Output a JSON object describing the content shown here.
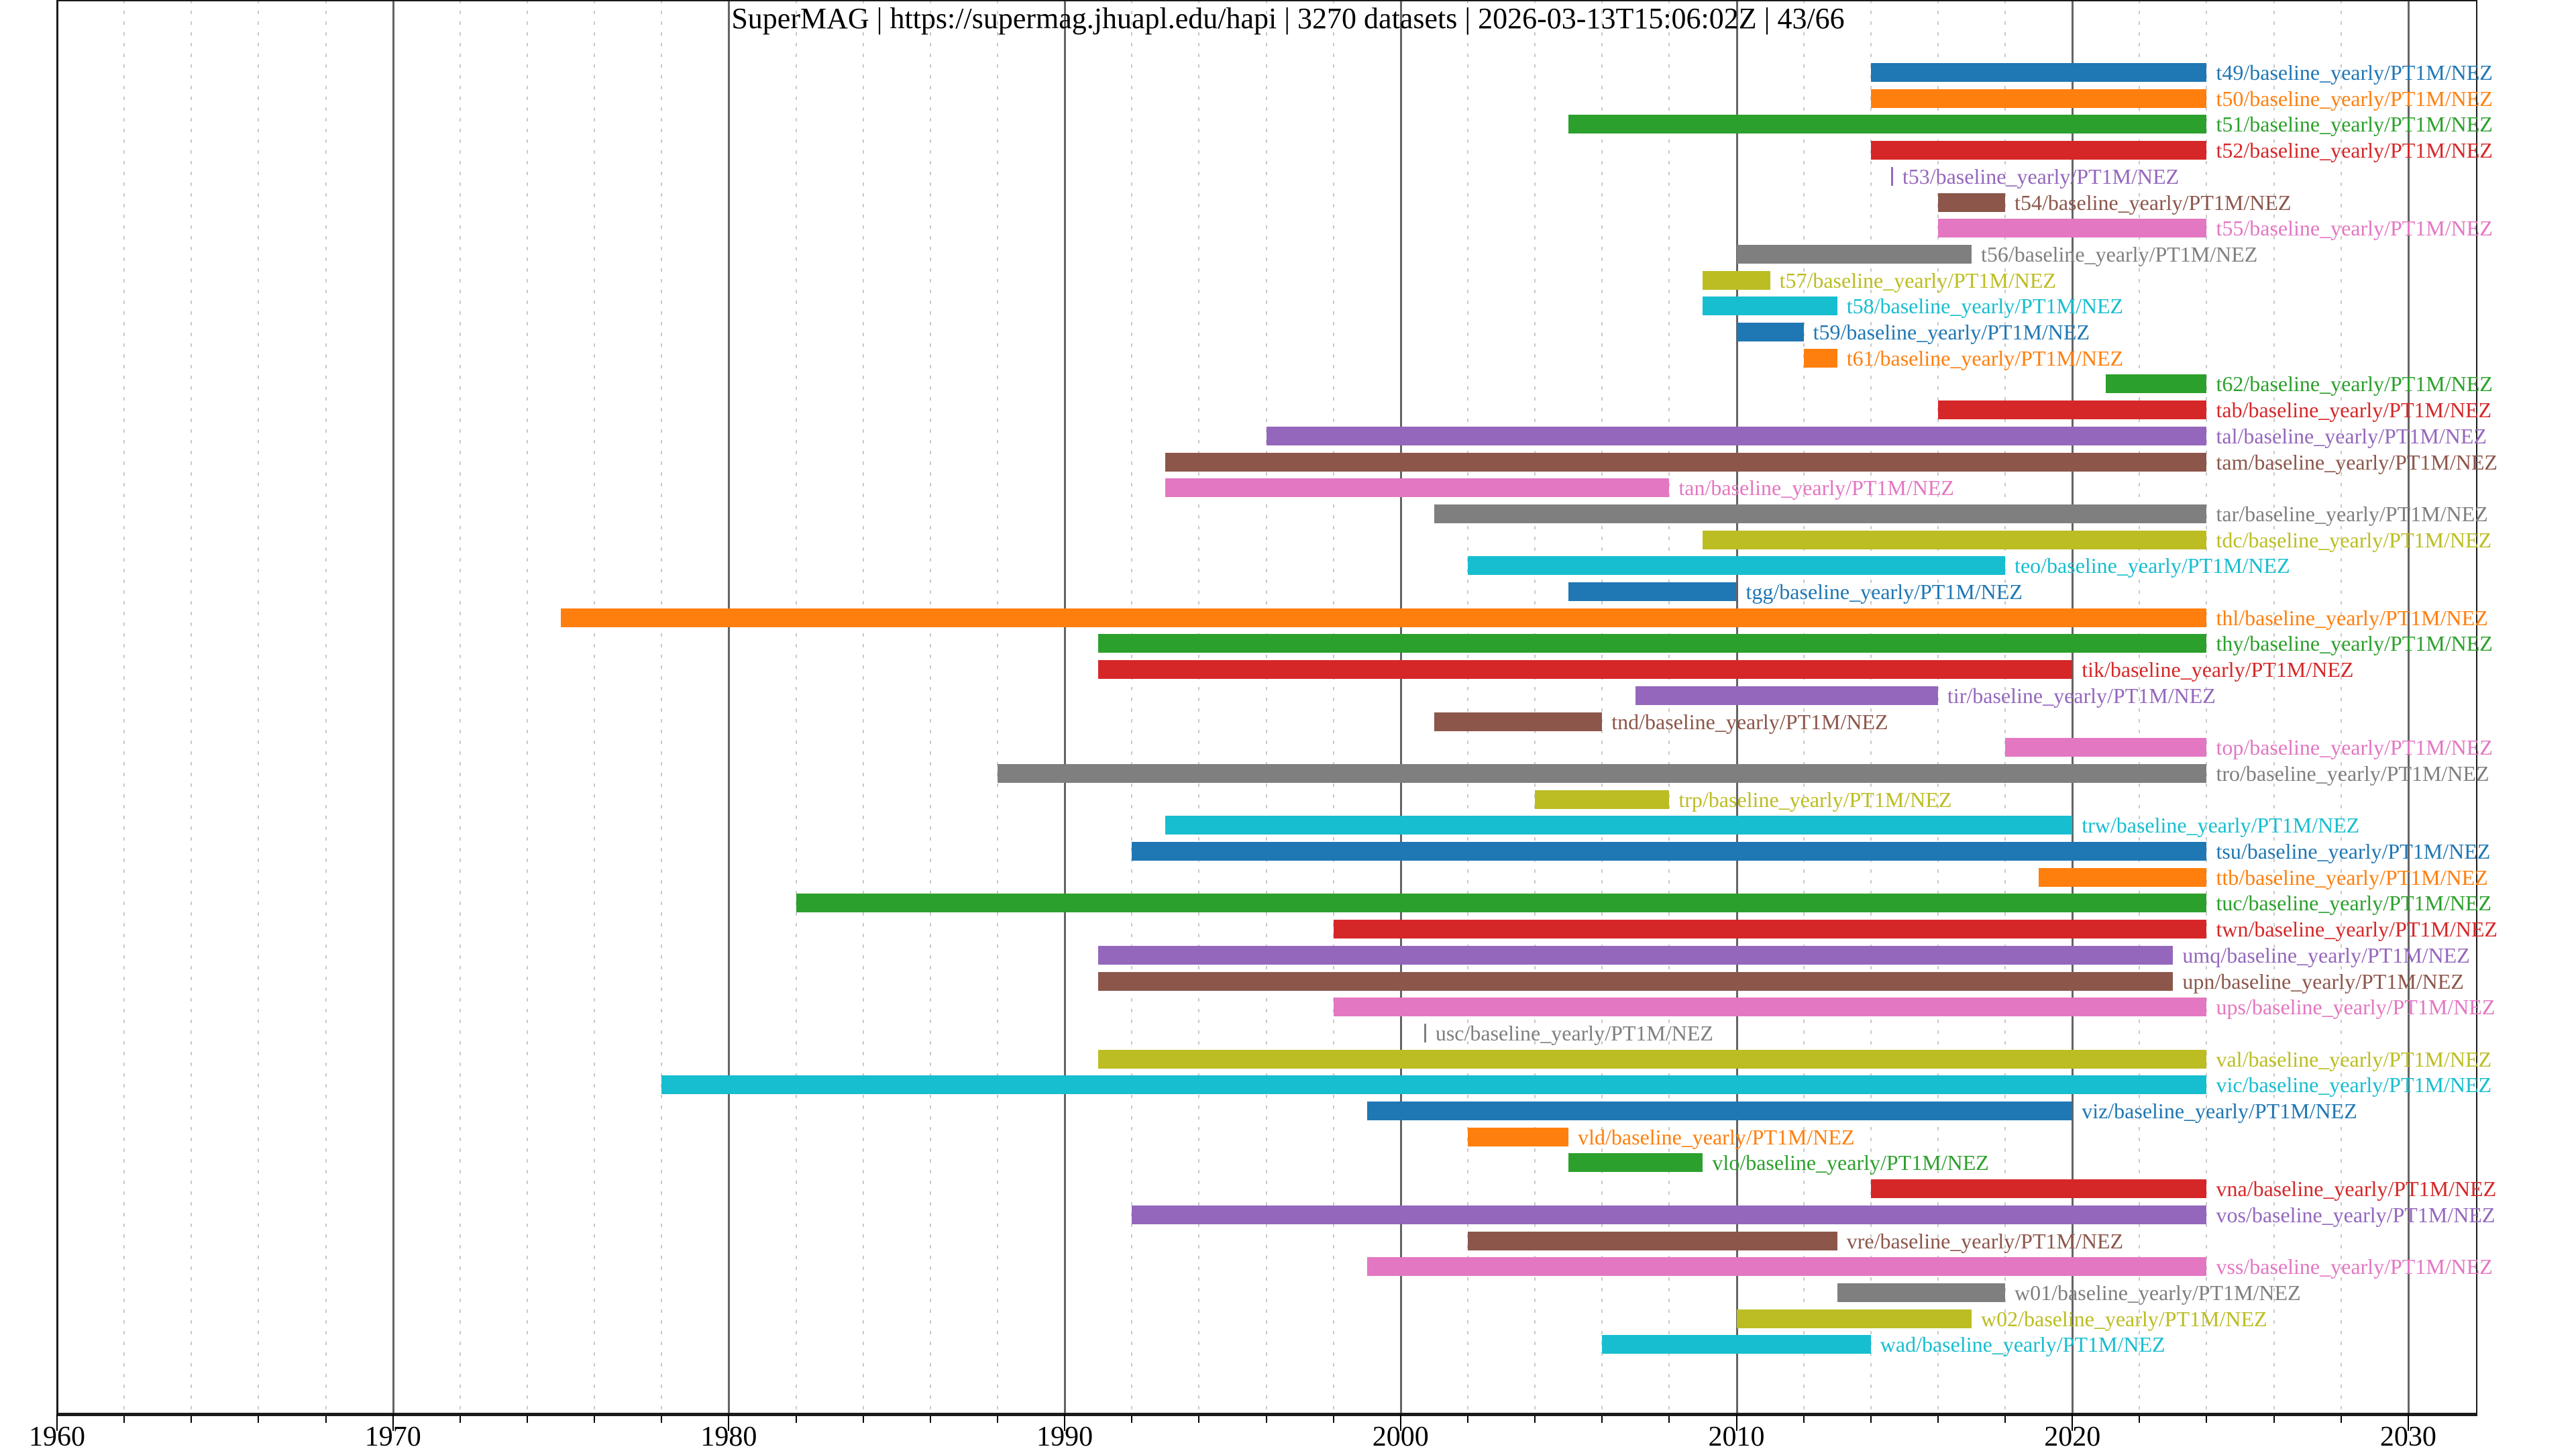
{
  "header": {
    "title": "SuperMAG | https://supermag.jhuapl.edu/hapi | 3270 datasets | 2026-03-13T15:06:02Z | 43/66"
  },
  "chart_data": {
    "type": "gantt",
    "title": "SuperMAG | https://supermag.jhuapl.edu/hapi | 3270 datasets | 2026-03-13T15:06:02Z | 43/66",
    "xlabel": "",
    "ylabel": "",
    "xlim": [
      1959.9,
      2032.1
    ],
    "x_major_ticks": [
      1960,
      1970,
      1980,
      1990,
      2000,
      2010,
      2020,
      2030
    ],
    "x_major_tick_labels": [
      "1960",
      "1970",
      "1980",
      "1990",
      "2000",
      "2010",
      "2020",
      "2030"
    ],
    "x_minor_tick_step_years": 2,
    "grid": "major solid gray vertical, minor dotted light-gray vertical",
    "legend_position": "none",
    "palette_tab10": [
      "#1f77b4",
      "#ff7f0e",
      "#2ca02c",
      "#d62728",
      "#9467bd",
      "#8c564b",
      "#e377c2",
      "#7f7f7f",
      "#bcbd22",
      "#17becf"
    ],
    "rows": [
      {
        "id": "t49",
        "label": "t49/baseline_yearly/PT1M/NEZ",
        "start": 2014.0,
        "end": 2024.0,
        "color": "#1f77b4"
      },
      {
        "id": "t50",
        "label": "t50/baseline_yearly/PT1M/NEZ",
        "start": 2014.0,
        "end": 2024.0,
        "color": "#ff7f0e"
      },
      {
        "id": "t51",
        "label": "t51/baseline_yearly/PT1M/NEZ",
        "start": 2005.0,
        "end": 2024.0,
        "color": "#2ca02c"
      },
      {
        "id": "t52",
        "label": "t52/baseline_yearly/PT1M/NEZ",
        "start": 2014.0,
        "end": 2024.0,
        "color": "#d62728"
      },
      {
        "id": "t53",
        "label": "t53/baseline_yearly/PT1M/NEZ",
        "start": 2014.6,
        "end": 2014.65,
        "color": "#9467bd"
      },
      {
        "id": "t54",
        "label": "t54/baseline_yearly/PT1M/NEZ",
        "start": 2016.0,
        "end": 2018.0,
        "color": "#8c564b"
      },
      {
        "id": "t55",
        "label": "t55/baseline_yearly/PT1M/NEZ",
        "start": 2016.0,
        "end": 2024.0,
        "color": "#e377c2"
      },
      {
        "id": "t56",
        "label": "t56/baseline_yearly/PT1M/NEZ",
        "start": 2010.0,
        "end": 2017.0,
        "color": "#7f7f7f"
      },
      {
        "id": "t57",
        "label": "t57/baseline_yearly/PT1M/NEZ",
        "start": 2009.0,
        "end": 2011.0,
        "color": "#bcbd22"
      },
      {
        "id": "t58",
        "label": "t58/baseline_yearly/PT1M/NEZ",
        "start": 2009.0,
        "end": 2013.0,
        "color": "#17becf"
      },
      {
        "id": "t59",
        "label": "t59/baseline_yearly/PT1M/NEZ",
        "start": 2010.0,
        "end": 2012.0,
        "color": "#1f77b4"
      },
      {
        "id": "t61",
        "label": "t61/baseline_yearly/PT1M/NEZ",
        "start": 2012.0,
        "end": 2013.0,
        "color": "#ff7f0e"
      },
      {
        "id": "t62",
        "label": "t62/baseline_yearly/PT1M/NEZ",
        "start": 2021.0,
        "end": 2024.0,
        "color": "#2ca02c"
      },
      {
        "id": "tab",
        "label": "tab/baseline_yearly/PT1M/NEZ",
        "start": 2016.0,
        "end": 2024.0,
        "color": "#d62728"
      },
      {
        "id": "tal",
        "label": "tal/baseline_yearly/PT1M/NEZ",
        "start": 1996.0,
        "end": 2024.0,
        "color": "#9467bd"
      },
      {
        "id": "tam",
        "label": "tam/baseline_yearly/PT1M/NEZ",
        "start": 1993.0,
        "end": 2024.0,
        "color": "#8c564b"
      },
      {
        "id": "tan",
        "label": "tan/baseline_yearly/PT1M/NEZ",
        "start": 1993.0,
        "end": 2008.0,
        "color": "#e377c2"
      },
      {
        "id": "tar",
        "label": "tar/baseline_yearly/PT1M/NEZ",
        "start": 2001.0,
        "end": 2024.0,
        "color": "#7f7f7f"
      },
      {
        "id": "tdc",
        "label": "tdc/baseline_yearly/PT1M/NEZ",
        "start": 2009.0,
        "end": 2024.0,
        "color": "#bcbd22"
      },
      {
        "id": "teo",
        "label": "teo/baseline_yearly/PT1M/NEZ",
        "start": 2002.0,
        "end": 2018.0,
        "color": "#17becf"
      },
      {
        "id": "tgg",
        "label": "tgg/baseline_yearly/PT1M/NEZ",
        "start": 2005.0,
        "end": 2010.0,
        "color": "#1f77b4"
      },
      {
        "id": "thl",
        "label": "thl/baseline_yearly/PT1M/NEZ",
        "start": 1975.0,
        "end": 2024.0,
        "color": "#ff7f0e"
      },
      {
        "id": "thy",
        "label": "thy/baseline_yearly/PT1M/NEZ",
        "start": 1991.0,
        "end": 2024.0,
        "color": "#2ca02c"
      },
      {
        "id": "tik",
        "label": "tik/baseline_yearly/PT1M/NEZ",
        "start": 1991.0,
        "end": 2020.0,
        "color": "#d62728"
      },
      {
        "id": "tir",
        "label": "tir/baseline_yearly/PT1M/NEZ",
        "start": 2007.0,
        "end": 2016.0,
        "color": "#9467bd"
      },
      {
        "id": "tnd",
        "label": "tnd/baseline_yearly/PT1M/NEZ",
        "start": 2001.0,
        "end": 2006.0,
        "color": "#8c564b"
      },
      {
        "id": "top",
        "label": "top/baseline_yearly/PT1M/NEZ",
        "start": 2018.0,
        "end": 2024.0,
        "color": "#e377c2"
      },
      {
        "id": "tro",
        "label": "tro/baseline_yearly/PT1M/NEZ",
        "start": 1988.0,
        "end": 2024.0,
        "color": "#7f7f7f"
      },
      {
        "id": "trp",
        "label": "trp/baseline_yearly/PT1M/NEZ",
        "start": 2004.0,
        "end": 2008.0,
        "color": "#bcbd22"
      },
      {
        "id": "trw",
        "label": "trw/baseline_yearly/PT1M/NEZ",
        "start": 1993.0,
        "end": 2020.0,
        "color": "#17becf"
      },
      {
        "id": "tsu",
        "label": "tsu/baseline_yearly/PT1M/NEZ",
        "start": 1992.0,
        "end": 2024.0,
        "color": "#1f77b4"
      },
      {
        "id": "ttb",
        "label": "ttb/baseline_yearly/PT1M/NEZ",
        "start": 2019.0,
        "end": 2024.0,
        "color": "#ff7f0e"
      },
      {
        "id": "tuc",
        "label": "tuc/baseline_yearly/PT1M/NEZ",
        "start": 1982.0,
        "end": 2024.0,
        "color": "#2ca02c"
      },
      {
        "id": "twn",
        "label": "twn/baseline_yearly/PT1M/NEZ",
        "start": 1998.0,
        "end": 2024.0,
        "color": "#d62728"
      },
      {
        "id": "umq",
        "label": "umq/baseline_yearly/PT1M/NEZ",
        "start": 1991.0,
        "end": 2023.0,
        "color": "#9467bd"
      },
      {
        "id": "upn",
        "label": "upn/baseline_yearly/PT1M/NEZ",
        "start": 1991.0,
        "end": 2023.0,
        "color": "#8c564b"
      },
      {
        "id": "ups",
        "label": "ups/baseline_yearly/PT1M/NEZ",
        "start": 1998.0,
        "end": 2024.0,
        "color": "#e377c2"
      },
      {
        "id": "usc",
        "label": "usc/baseline_yearly/PT1M/NEZ",
        "start": 2000.7,
        "end": 2000.75,
        "color": "#7f7f7f"
      },
      {
        "id": "val",
        "label": "val/baseline_yearly/PT1M/NEZ",
        "start": 1991.0,
        "end": 2024.0,
        "color": "#bcbd22"
      },
      {
        "id": "vic",
        "label": "vic/baseline_yearly/PT1M/NEZ",
        "start": 1978.0,
        "end": 2024.0,
        "color": "#17becf"
      },
      {
        "id": "viz",
        "label": "viz/baseline_yearly/PT1M/NEZ",
        "start": 1999.0,
        "end": 2020.0,
        "color": "#1f77b4"
      },
      {
        "id": "vld",
        "label": "vld/baseline_yearly/PT1M/NEZ",
        "start": 2002.0,
        "end": 2005.0,
        "color": "#ff7f0e"
      },
      {
        "id": "vlo",
        "label": "vlo/baseline_yearly/PT1M/NEZ",
        "start": 2005.0,
        "end": 2009.0,
        "color": "#2ca02c"
      },
      {
        "id": "vna",
        "label": "vna/baseline_yearly/PT1M/NEZ",
        "start": 2014.0,
        "end": 2024.0,
        "color": "#d62728"
      },
      {
        "id": "vos",
        "label": "vos/baseline_yearly/PT1M/NEZ",
        "start": 1992.0,
        "end": 2024.0,
        "color": "#9467bd"
      },
      {
        "id": "vre",
        "label": "vre/baseline_yearly/PT1M/NEZ",
        "start": 2002.0,
        "end": 2013.0,
        "color": "#8c564b"
      },
      {
        "id": "vss",
        "label": "vss/baseline_yearly/PT1M/NEZ",
        "start": 1999.0,
        "end": 2024.0,
        "color": "#e377c2"
      },
      {
        "id": "w01",
        "label": "w01/baseline_yearly/PT1M/NEZ",
        "start": 2013.0,
        "end": 2018.0,
        "color": "#7f7f7f"
      },
      {
        "id": "w02",
        "label": "w02/baseline_yearly/PT1M/NEZ",
        "start": 2010.0,
        "end": 2017.0,
        "color": "#bcbd22"
      },
      {
        "id": "wad",
        "label": "wad/baseline_yearly/PT1M/NEZ",
        "start": 2006.0,
        "end": 2014.0,
        "color": "#17becf"
      }
    ]
  }
}
